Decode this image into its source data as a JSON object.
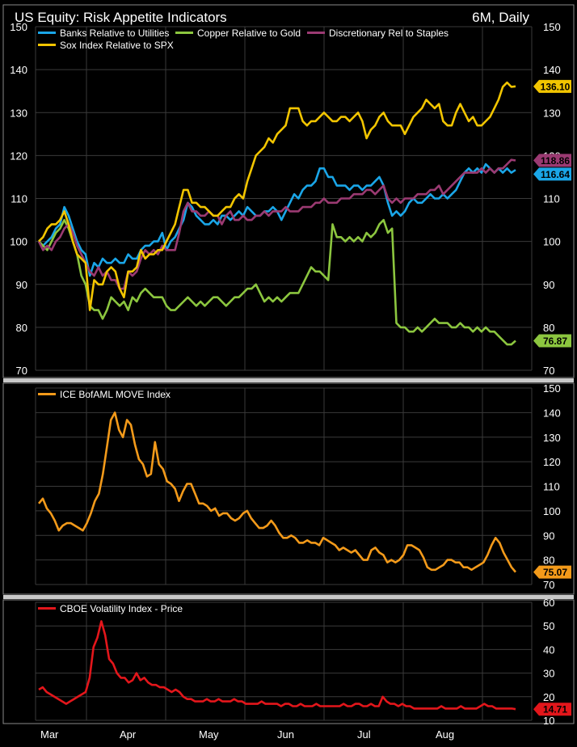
{
  "header": {
    "title": "US Equity: Risk Appetite Indicators",
    "period": "6M, Daily"
  },
  "colors": {
    "background": "#000000",
    "panel_border": "#8a8a8a",
    "grid": "#3a3a3a",
    "divider": "#c8c8c8",
    "banks": "#1aa6e8",
    "copper": "#8cc63f",
    "discretionary": "#9b3a72",
    "sox": "#f2c500",
    "move": "#f39a1a",
    "vix": "#e3161b",
    "text": "#ffffff"
  },
  "x_axis": {
    "labels": [
      "Mar",
      "Apr",
      "May",
      "Jun",
      "Jul",
      "Aug"
    ]
  },
  "chart_data": [
    {
      "type": "line",
      "ylim": [
        70,
        150
      ],
      "yticks": [
        70,
        80,
        90,
        100,
        110,
        120,
        130,
        140,
        150
      ],
      "legend": [
        "Banks Relative to Utilities",
        "Copper Relative to Gold",
        "Discretionary Rel to Staples",
        "Sox Index Relative to SPX"
      ],
      "series": [
        {
          "name": "Banks Relative to Utilities",
          "color": "#1aa6e8",
          "last": "116.64",
          "values": [
            100,
            99,
            100,
            101,
            103,
            104,
            108,
            106,
            103,
            100,
            98,
            97,
            92,
            95,
            94,
            96,
            95,
            95,
            96,
            95,
            95,
            97,
            96,
            96,
            98,
            99,
            99,
            100,
            100,
            102,
            98,
            100,
            101,
            103,
            105,
            109,
            108,
            106,
            105,
            104,
            104,
            105,
            104,
            106,
            106,
            105,
            106,
            107,
            106,
            108,
            107,
            106,
            106,
            107,
            107,
            108,
            107,
            105,
            107,
            109,
            111,
            110,
            112,
            113,
            113,
            114,
            117,
            117,
            115,
            115,
            113,
            113,
            113,
            112,
            113,
            113,
            112,
            113,
            113,
            114,
            115,
            113,
            109,
            106,
            107,
            106,
            107,
            109,
            110,
            109,
            109,
            110,
            111,
            110,
            110,
            111,
            110,
            111,
            112,
            114,
            116,
            117,
            116,
            117,
            116,
            118,
            117,
            116,
            117,
            116,
            117,
            116,
            116.64
          ]
        },
        {
          "name": "Copper Relative to Gold",
          "color": "#8cc63f",
          "last": "76.87",
          "values": [
            100,
            99,
            98,
            100,
            102,
            103,
            105,
            103,
            100,
            97,
            92,
            90,
            85,
            84,
            84,
            82,
            84,
            87,
            86,
            85,
            86,
            84,
            87,
            86,
            88,
            89,
            88,
            87,
            87,
            87,
            85,
            84,
            84,
            85,
            86,
            87,
            86,
            85,
            86,
            85,
            86,
            87,
            87,
            86,
            85,
            86,
            87,
            87,
            88,
            89,
            89,
            90,
            88,
            86,
            87,
            86,
            87,
            86,
            87,
            88,
            88,
            88,
            90,
            92,
            94,
            93,
            93,
            92,
            91,
            104,
            101,
            101,
            100,
            101,
            100,
            101,
            100,
            102,
            101,
            102,
            104,
            105,
            102,
            103,
            81,
            80,
            80,
            79,
            79,
            80,
            79,
            80,
            81,
            82,
            81,
            81,
            81,
            80,
            80,
            81,
            80,
            80,
            79,
            80,
            79,
            80,
            79,
            79,
            78,
            77,
            76,
            76,
            76.87
          ]
        },
        {
          "name": "Discretionary Rel to Staples",
          "color": "#9b3a72",
          "last": "118.86",
          "values": [
            100,
            98,
            99,
            98,
            100,
            101,
            103,
            104,
            102,
            99,
            97,
            95,
            93,
            92,
            94,
            92,
            93,
            91,
            91,
            89,
            89,
            93,
            92,
            93,
            96,
            98,
            97,
            98,
            97,
            99,
            98,
            98,
            98,
            102,
            107,
            109,
            107,
            107,
            106,
            106,
            107,
            106,
            106,
            104,
            106,
            107,
            105,
            105,
            106,
            105,
            105,
            106,
            106,
            107,
            106,
            107,
            107,
            107,
            108,
            107,
            107,
            107,
            108,
            108,
            108,
            109,
            109,
            110,
            109,
            109,
            109,
            110,
            110,
            110,
            111,
            111,
            111,
            112,
            112,
            111,
            112,
            113,
            110,
            109,
            110,
            109,
            110,
            110,
            110,
            111,
            111,
            111,
            112,
            112,
            113,
            111,
            112,
            113,
            114,
            115,
            116,
            116,
            116,
            116,
            117,
            116,
            117,
            116,
            117,
            117,
            118,
            119,
            118.86
          ]
        },
        {
          "name": "Sox Index Relative to SPX",
          "color": "#f2c500",
          "last": "136.10",
          "values": [
            100,
            101,
            103,
            104,
            104,
            105,
            107,
            104,
            100,
            97,
            96,
            95,
            84,
            91,
            90,
            90,
            93,
            94,
            93,
            89,
            87,
            93,
            93,
            94,
            98,
            96,
            97,
            97,
            98,
            98,
            100,
            102,
            104,
            108,
            112,
            112,
            109,
            109,
            108,
            108,
            107,
            106,
            106,
            107,
            108,
            108,
            110,
            111,
            110,
            114,
            117,
            120,
            121,
            122,
            124,
            123,
            125,
            126,
            127,
            131,
            131,
            131,
            128,
            127,
            128,
            128,
            129,
            130,
            129,
            128,
            128,
            129,
            129,
            128,
            129,
            130,
            128,
            124,
            126,
            127,
            129,
            130,
            128,
            127,
            127,
            127,
            125,
            127,
            129,
            130,
            131,
            133,
            132,
            131,
            132,
            128,
            127,
            127,
            130,
            132,
            130,
            128,
            129,
            127,
            127,
            128,
            129,
            131,
            133,
            136,
            137,
            136,
            136.1
          ]
        }
      ]
    },
    {
      "type": "line",
      "ylim": [
        70,
        150
      ],
      "yticks": [
        70,
        80,
        90,
        100,
        110,
        120,
        130,
        140,
        150
      ],
      "series": [
        {
          "name": "ICE BofAML MOVE Index",
          "color": "#f39a1a",
          "last": "75.07",
          "values": [
            103,
            105,
            101,
            99,
            96,
            92,
            94,
            95,
            95,
            94,
            93,
            92,
            95,
            99,
            104,
            107,
            115,
            126,
            137,
            140,
            133,
            130,
            137,
            135,
            127,
            121,
            119,
            114,
            115,
            128,
            119,
            117,
            112,
            111,
            109,
            104,
            108,
            111,
            111,
            107,
            103,
            103,
            102,
            100,
            101,
            98,
            99,
            99,
            97,
            96,
            97,
            99,
            100,
            97,
            95,
            93,
            93,
            94,
            96,
            94,
            91,
            89,
            89,
            90,
            89,
            87,
            87,
            88,
            87,
            87,
            86,
            89,
            88,
            87,
            86,
            84,
            85,
            84,
            83,
            84,
            82,
            80,
            80,
            84,
            85,
            83,
            82,
            79,
            80,
            79,
            80,
            82,
            86,
            86,
            85,
            84,
            81,
            77,
            76,
            76,
            77,
            78,
            80,
            80,
            79,
            79,
            77,
            77,
            76,
            77,
            78,
            79,
            82,
            86,
            89,
            87,
            83,
            80,
            77,
            75.07
          ]
        }
      ]
    },
    {
      "type": "line",
      "ylim": [
        10,
        60
      ],
      "yticks": [
        10,
        20,
        30,
        40,
        50,
        60
      ],
      "series": [
        {
          "name": "CBOE Volatility Index - Price",
          "color": "#e3161b",
          "last": "14.71",
          "values": [
            23,
            24,
            22,
            21,
            20,
            19,
            18,
            17,
            18,
            19,
            20,
            21,
            22,
            28,
            41,
            45,
            52,
            46,
            36,
            34,
            30,
            28,
            28,
            26,
            27,
            30,
            27,
            28,
            26,
            25,
            25,
            24,
            24,
            23,
            22,
            23,
            22,
            20,
            19,
            19,
            18,
            18,
            18,
            19,
            18,
            18,
            19,
            18,
            18,
            18,
            19,
            18,
            18,
            17,
            17,
            17,
            17,
            18,
            17,
            17,
            17,
            17,
            16,
            17,
            17,
            16,
            16,
            17,
            16,
            16,
            16,
            17,
            16,
            16,
            16,
            16,
            16,
            16,
            17,
            16,
            16,
            17,
            17,
            16,
            16,
            17,
            16,
            16,
            20,
            18,
            17,
            17,
            16,
            17,
            16,
            16,
            15,
            15,
            15,
            15,
            15,
            15,
            15,
            16,
            15,
            15,
            15,
            15,
            16,
            15,
            15,
            15,
            15,
            16,
            17,
            16,
            16,
            15,
            15,
            15,
            15,
            15,
            14.71
          ]
        }
      ]
    }
  ]
}
